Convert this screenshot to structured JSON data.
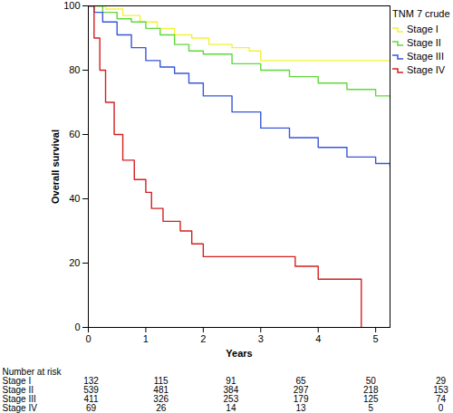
{
  "chart_data": {
    "type": "line",
    "line_style": "step",
    "xlabel": "Years",
    "ylabel": "Overall survival",
    "xlim": [
      0,
      5.25
    ],
    "ylim": [
      0,
      100
    ],
    "xticks": [
      0,
      1,
      2,
      3,
      4,
      5
    ],
    "yticks": [
      0,
      20,
      40,
      60,
      80,
      100
    ],
    "legend": "upper right",
    "legend_title": "TNM 7 crude",
    "series": [
      {
        "name": "Stage I",
        "color": "#f2f234",
        "x": [
          0,
          0.3,
          0.6,
          0.9,
          1.2,
          1.5,
          1.8,
          2.1,
          2.5,
          2.8,
          3.0,
          5.25
        ],
        "values": [
          100,
          99,
          97,
          95,
          93,
          91,
          90,
          88,
          87,
          86,
          83,
          83
        ]
      },
      {
        "name": "Stage II",
        "color": "#5fd93a",
        "x": [
          0,
          0.25,
          0.5,
          0.75,
          1,
          1.25,
          1.5,
          1.75,
          2,
          2.5,
          3,
          3.5,
          4,
          4.5,
          5,
          5.25
        ],
        "values": [
          100,
          98,
          96,
          95,
          93,
          91,
          88,
          86,
          85,
          82,
          80,
          78,
          76,
          74,
          72,
          71
        ]
      },
      {
        "name": "Stage III",
        "color": "#3a56d8",
        "x": [
          0,
          0.1,
          0.25,
          0.5,
          0.75,
          1,
          1.25,
          1.5,
          1.75,
          2,
          2.5,
          3,
          3.5,
          4,
          4.5,
          5,
          5.25
        ],
        "values": [
          100,
          98,
          95,
          91,
          87,
          83,
          81,
          79,
          76,
          72,
          67,
          62,
          59,
          56,
          53,
          51,
          50
        ]
      },
      {
        "name": "Stage IV",
        "color": "#d42020",
        "x": [
          0,
          0.1,
          0.2,
          0.3,
          0.45,
          0.6,
          0.8,
          1.0,
          1.1,
          1.3,
          1.6,
          1.8,
          2.0,
          3.5,
          3.6,
          4.0,
          4.75
        ],
        "values": [
          100,
          90,
          80,
          70,
          60,
          52,
          46,
          42,
          37,
          33,
          30,
          26,
          22,
          22,
          19,
          15,
          0
        ]
      }
    ],
    "risk_table": {
      "title": "Number at risk",
      "x": [
        0,
        1,
        2,
        3,
        4,
        5
      ],
      "rows": [
        {
          "name": "Stage I",
          "values": [
            132,
            115,
            91,
            65,
            50,
            29
          ]
        },
        {
          "name": "Stage II",
          "values": [
            539,
            481,
            384,
            297,
            218,
            153
          ]
        },
        {
          "name": "Stage III",
          "values": [
            411,
            326,
            253,
            179,
            125,
            74
          ]
        },
        {
          "name": "Stage IV",
          "values": [
            69,
            26,
            14,
            13,
            5,
            0
          ]
        }
      ]
    }
  }
}
